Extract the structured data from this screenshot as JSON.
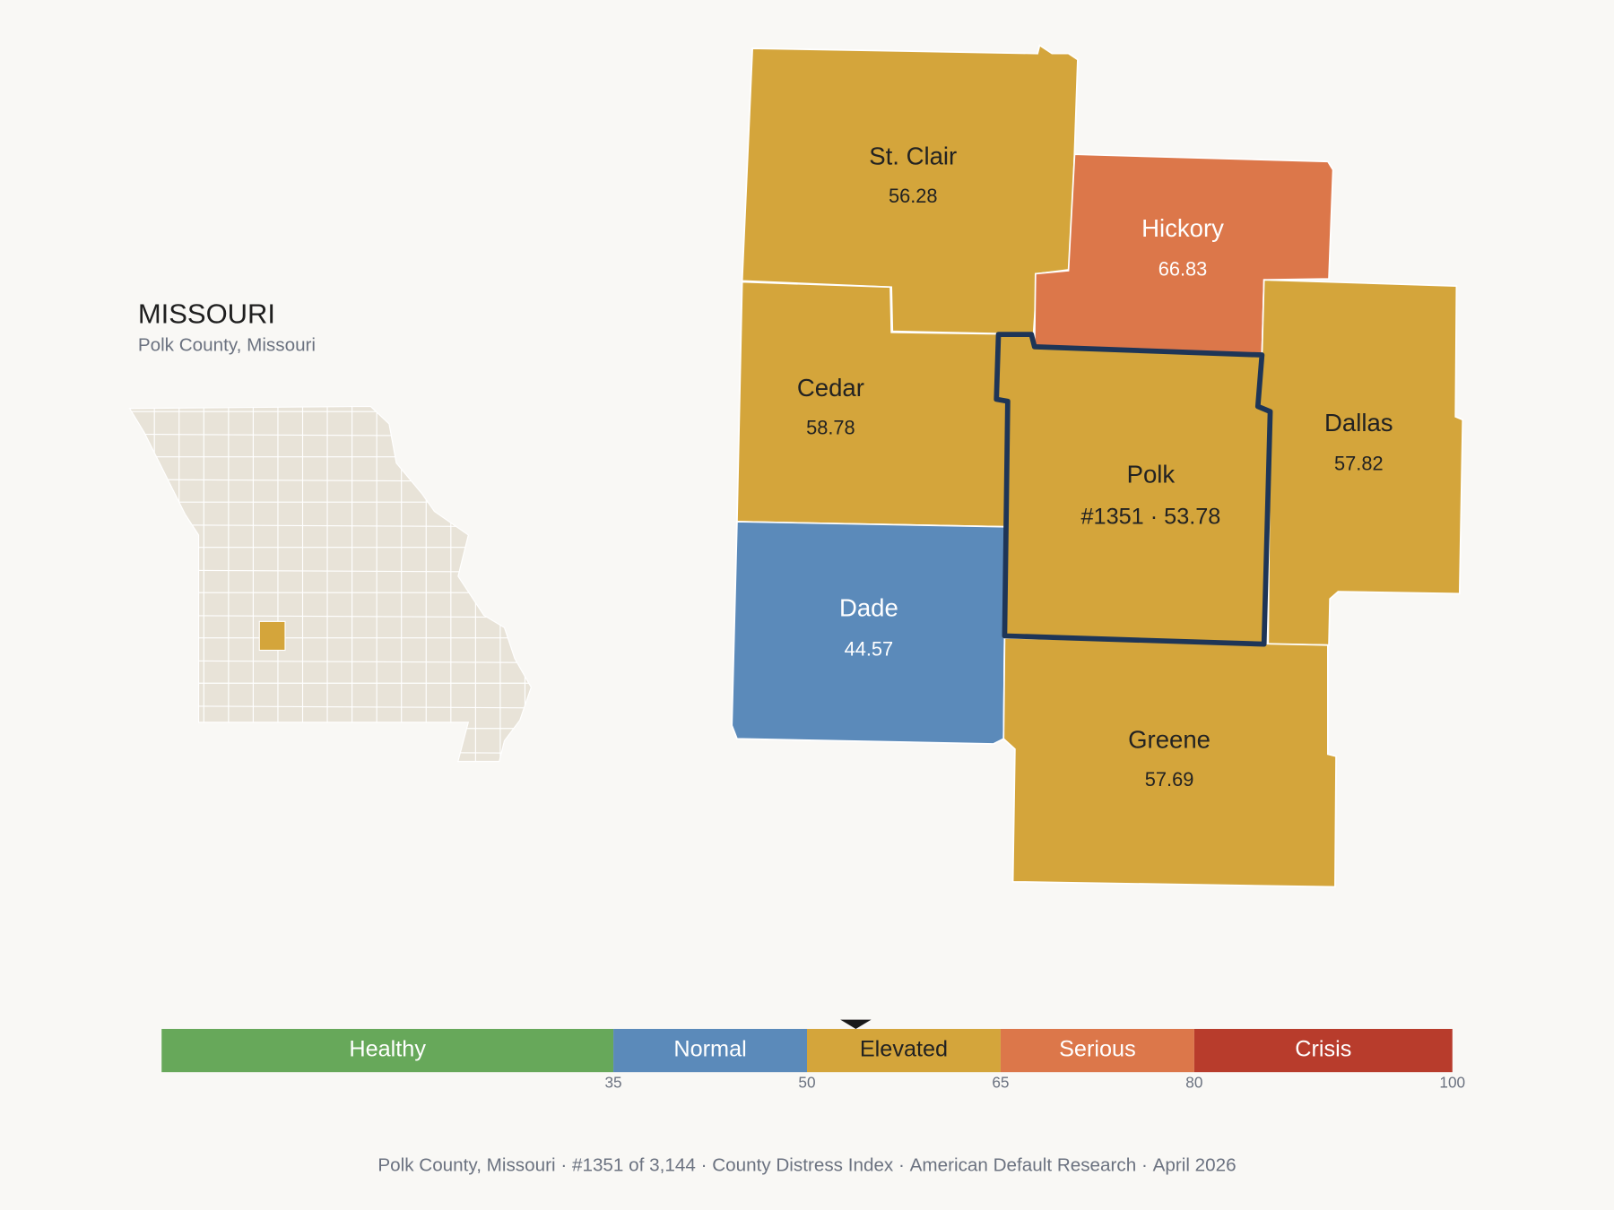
{
  "header": {
    "title": "MISSOURI",
    "subtitle": "Polk County, Missouri"
  },
  "counties": [
    {
      "name": "St. Clair",
      "value": 56.28
    },
    {
      "name": "Hickory",
      "value": 66.83
    },
    {
      "name": "Cedar",
      "value": 58.78
    },
    {
      "name": "Dade",
      "value": 44.57
    },
    {
      "name": "Polk",
      "rank": "#1351",
      "value": 53.78
    },
    {
      "name": "Dallas",
      "value": 57.82
    },
    {
      "name": "Greene",
      "value": 57.69
    }
  ],
  "scale": {
    "range": [
      0,
      100
    ],
    "ticks": [
      35,
      50,
      65,
      80,
      100
    ],
    "bands": [
      {
        "name": "Healthy",
        "color": "#67a85a",
        "label_color": "#ffffff"
      },
      {
        "name": "Normal",
        "color": "#5b8aba",
        "label_color": "#ffffff"
      },
      {
        "name": "Elevated",
        "color": "#d4a53b",
        "label_color": "#222222"
      },
      {
        "name": "Serious",
        "color": "#dc774a",
        "label_color": "#ffffff"
      },
      {
        "name": "Crisis",
        "color": "#b83c2c",
        "label_color": "#ffffff"
      }
    ]
  },
  "footer": {
    "items": [
      "Polk County, Missouri",
      "#1351 of 3,144",
      "County Distress Index",
      "American Default Research",
      "April 2026"
    ],
    "separator": "·"
  }
}
